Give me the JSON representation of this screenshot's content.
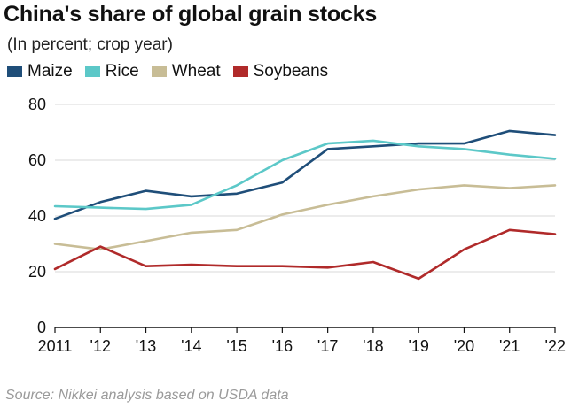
{
  "chart_data": {
    "type": "line",
    "title": "China's share of global grain stocks",
    "subtitle": "(In percent; crop year)",
    "xlabel": "",
    "ylabel": "",
    "categories": [
      "2011",
      "'12",
      "'13",
      "'14",
      "'15",
      "'16",
      "'17",
      "'18",
      "'19",
      "'20",
      "'21",
      "'22"
    ],
    "ylim": [
      0,
      80
    ],
    "yticks": [
      0,
      20,
      40,
      60,
      80
    ],
    "yticklabels": [
      "0",
      "20",
      "40",
      "60",
      "80"
    ],
    "grid": true,
    "legend_position": "top-left",
    "series": [
      {
        "name": "Maize",
        "color": "#1f4e79",
        "values": [
          39,
          45,
          49,
          47,
          48,
          52,
          64,
          65,
          66,
          66,
          70.5,
          69
        ]
      },
      {
        "name": "Rice",
        "color": "#5cc8c8",
        "values": [
          43.5,
          43,
          42.5,
          44,
          51,
          60,
          66,
          67,
          65,
          64,
          62,
          60.5
        ]
      },
      {
        "name": "Wheat",
        "color": "#c8bd96",
        "values": [
          30,
          28,
          31,
          34,
          35,
          40.5,
          44,
          47,
          49.5,
          51,
          50,
          51
        ]
      },
      {
        "name": "Soybeans",
        "color": "#b02a2a",
        "values": [
          21,
          29,
          22,
          22.5,
          22,
          22,
          21.5,
          23.5,
          17.5,
          28,
          35,
          33.5
        ]
      }
    ],
    "source": "Source: Nikkei analysis based on USDA data"
  }
}
